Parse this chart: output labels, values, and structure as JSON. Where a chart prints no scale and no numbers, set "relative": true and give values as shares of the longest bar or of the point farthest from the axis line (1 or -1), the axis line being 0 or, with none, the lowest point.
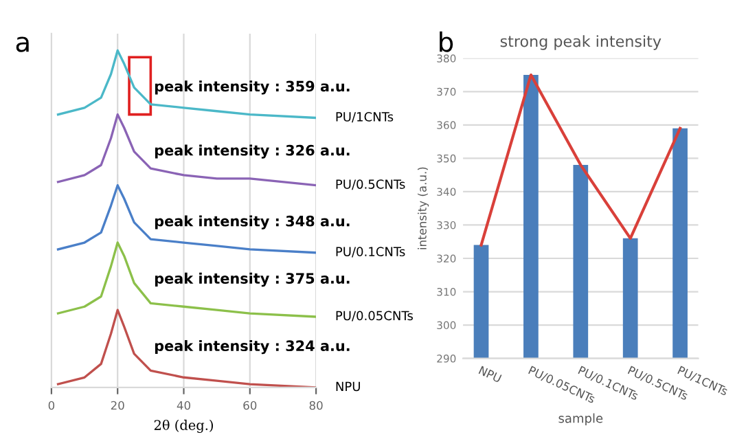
{
  "chart_data": [
    {
      "type": "line",
      "relative": true,
      "xlabel": "2θ (deg.)",
      "xlim": [
        0,
        80
      ],
      "xticks": [
        0,
        20,
        40,
        60,
        80
      ],
      "grid": "x",
      "tick_labels": "x",
      "legend": false,
      "annotations": [
        "a",
        "peak intensity : 359 a.u.",
        "peak intensity : 326 a.u.",
        "peak intensity : 348 a.u.",
        "peak intensity : 375 a.u.",
        "peak intensity : 324 a.u."
      ],
      "series": [
        {
          "name": "PU/1CNTs",
          "color": "#4bb8c8",
          "x": [
            2,
            10,
            15,
            18,
            20,
            22,
            25,
            30,
            40,
            50,
            60,
            80
          ],
          "values": [
            0.81,
            0.83,
            0.86,
            0.93,
            1.0,
            0.96,
            0.89,
            0.84,
            0.83,
            0.82,
            0.81,
            0.8
          ]
        },
        {
          "name": "PU/0.5CNTs",
          "color": "#8a63b5",
          "x": [
            2,
            10,
            15,
            18,
            20,
            22,
            25,
            30,
            40,
            50,
            60,
            80
          ],
          "values": [
            0.61,
            0.63,
            0.66,
            0.74,
            0.81,
            0.77,
            0.7,
            0.65,
            0.63,
            0.62,
            0.62,
            0.6
          ]
        },
        {
          "name": "PU/0.1CNTs",
          "color": "#4a7fc8",
          "x": [
            2,
            10,
            15,
            18,
            20,
            22,
            25,
            30,
            40,
            50,
            60,
            80
          ],
          "values": [
            0.41,
            0.43,
            0.46,
            0.54,
            0.6,
            0.56,
            0.49,
            0.44,
            0.43,
            0.42,
            0.41,
            0.4
          ]
        },
        {
          "name": "PU/0.05CNTs",
          "color": "#8cc04a",
          "x": [
            2,
            10,
            15,
            18,
            20,
            22,
            25,
            30,
            40,
            50,
            60,
            80
          ],
          "values": [
            0.22,
            0.24,
            0.27,
            0.36,
            0.43,
            0.39,
            0.31,
            0.25,
            0.24,
            0.23,
            0.22,
            0.21
          ]
        },
        {
          "name": "NPU",
          "color": "#c0504d",
          "x": [
            2,
            10,
            15,
            18,
            20,
            22,
            25,
            30,
            40,
            50,
            60,
            80
          ],
          "values": [
            0.01,
            0.03,
            0.07,
            0.16,
            0.23,
            0.18,
            0.1,
            0.05,
            0.03,
            0.02,
            0.01,
            0.0
          ]
        }
      ]
    },
    {
      "type": "bar",
      "title": "strong peak intensity",
      "xlabel": "sample",
      "ylabel": "intensity (a.u.)",
      "categories": [
        "NPU",
        "PU/0.05CNTs",
        "PU/0.1CNTs",
        "PU/0.5CNTs",
        "PU/1CNTs"
      ],
      "ylim": [
        290,
        380
      ],
      "yticks": [
        290,
        300,
        310,
        320,
        330,
        340,
        350,
        360,
        370,
        380
      ],
      "grid": "y",
      "legend": false,
      "annotations": [
        "b"
      ],
      "series": [
        {
          "type": "bar",
          "color": "#4a7ebb",
          "values": [
            324,
            375,
            348,
            326,
            359
          ]
        },
        {
          "type": "line",
          "color": "#d9403a",
          "values": [
            324,
            375,
            348,
            326,
            359
          ]
        }
      ]
    }
  ]
}
